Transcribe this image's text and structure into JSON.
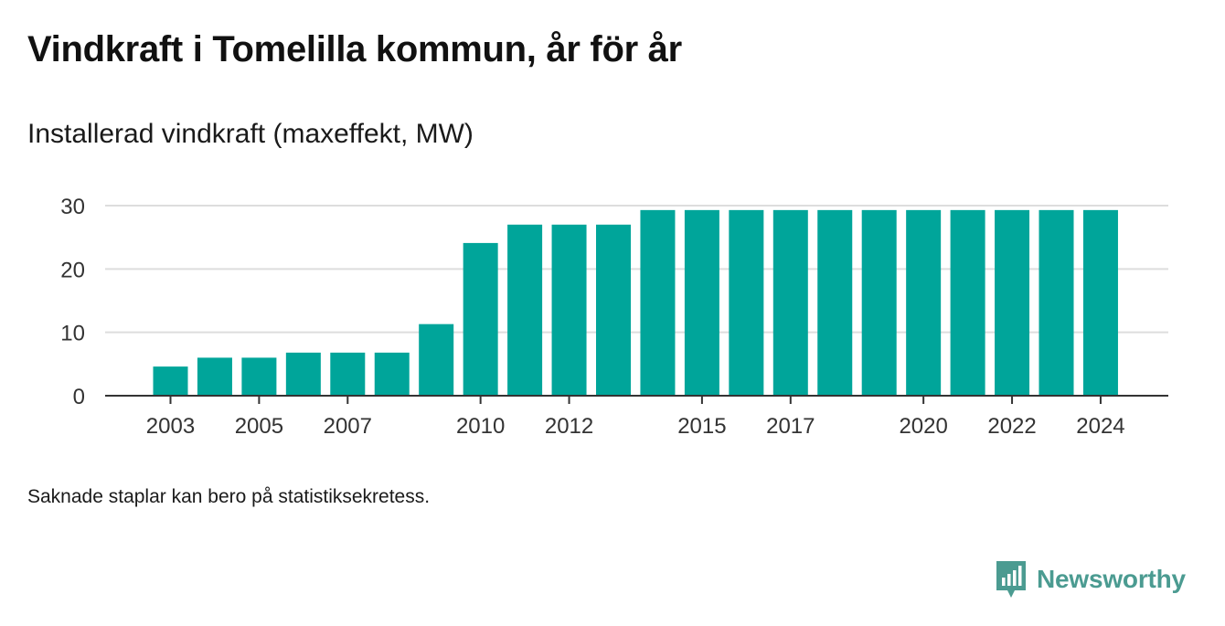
{
  "title": "Vindkraft i Tomelilla kommun, år för år",
  "subtitle": "Installerad vindkraft (maxeffekt, MW)",
  "footnote": "Saknade staplar kan bero på statistiksekretess.",
  "brand": {
    "name": "Newsworthy",
    "color": "#4b9b91"
  },
  "chart_data": {
    "type": "bar",
    "bar_color": "#00a59a",
    "x": [
      2003,
      2004,
      2005,
      2006,
      2007,
      2008,
      2009,
      2010,
      2011,
      2012,
      2013,
      2014,
      2015,
      2016,
      2017,
      2018,
      2019,
      2020,
      2021,
      2022,
      2023,
      2024
    ],
    "values": [
      4.6,
      6.0,
      6.0,
      6.8,
      6.8,
      6.8,
      11.3,
      24.1,
      27.0,
      27.0,
      27.0,
      29.3,
      29.3,
      29.3,
      29.3,
      29.3,
      29.3,
      29.3,
      29.3,
      29.3,
      29.3,
      29.3
    ],
    "x_tick_labels": [
      "2003",
      "2005",
      "2007",
      "2010",
      "2012",
      "2015",
      "2017",
      "2020",
      "2022",
      "2024"
    ],
    "y_ticks": [
      0,
      10,
      20,
      30
    ],
    "ylim": [
      0,
      30
    ],
    "grid": true
  }
}
